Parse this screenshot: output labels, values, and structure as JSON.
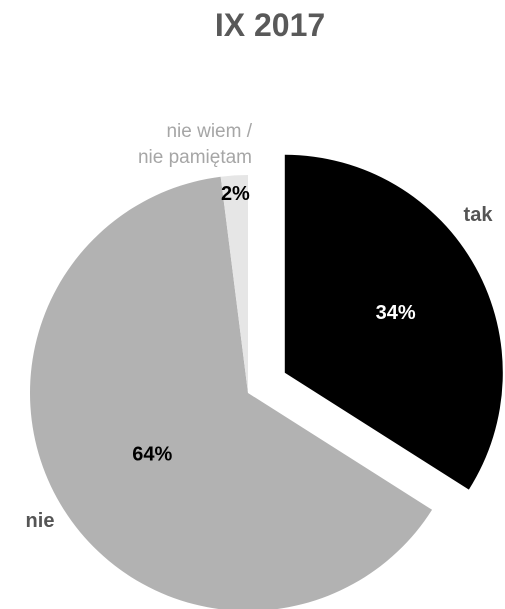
{
  "chart_data": {
    "type": "pie",
    "title": "IX 2017",
    "slices": [
      {
        "label": "tak",
        "value": 34,
        "value_label": "34%",
        "color": "#000000",
        "label_color": "#555555",
        "pct_color": "#ffffff",
        "exploded": true
      },
      {
        "label": "nie",
        "value": 64,
        "value_label": "64%",
        "color": "#b2b2b2",
        "label_color": "#555555",
        "pct_color": "#000000",
        "exploded": false
      },
      {
        "label_lines": [
          "nie wiem /",
          "nie pamiętam"
        ],
        "value": 2,
        "value_label": "2%",
        "color": "#e6e6e6",
        "label_color": "#a6a6a6",
        "pct_color": "#000000",
        "exploded": false
      }
    ]
  }
}
